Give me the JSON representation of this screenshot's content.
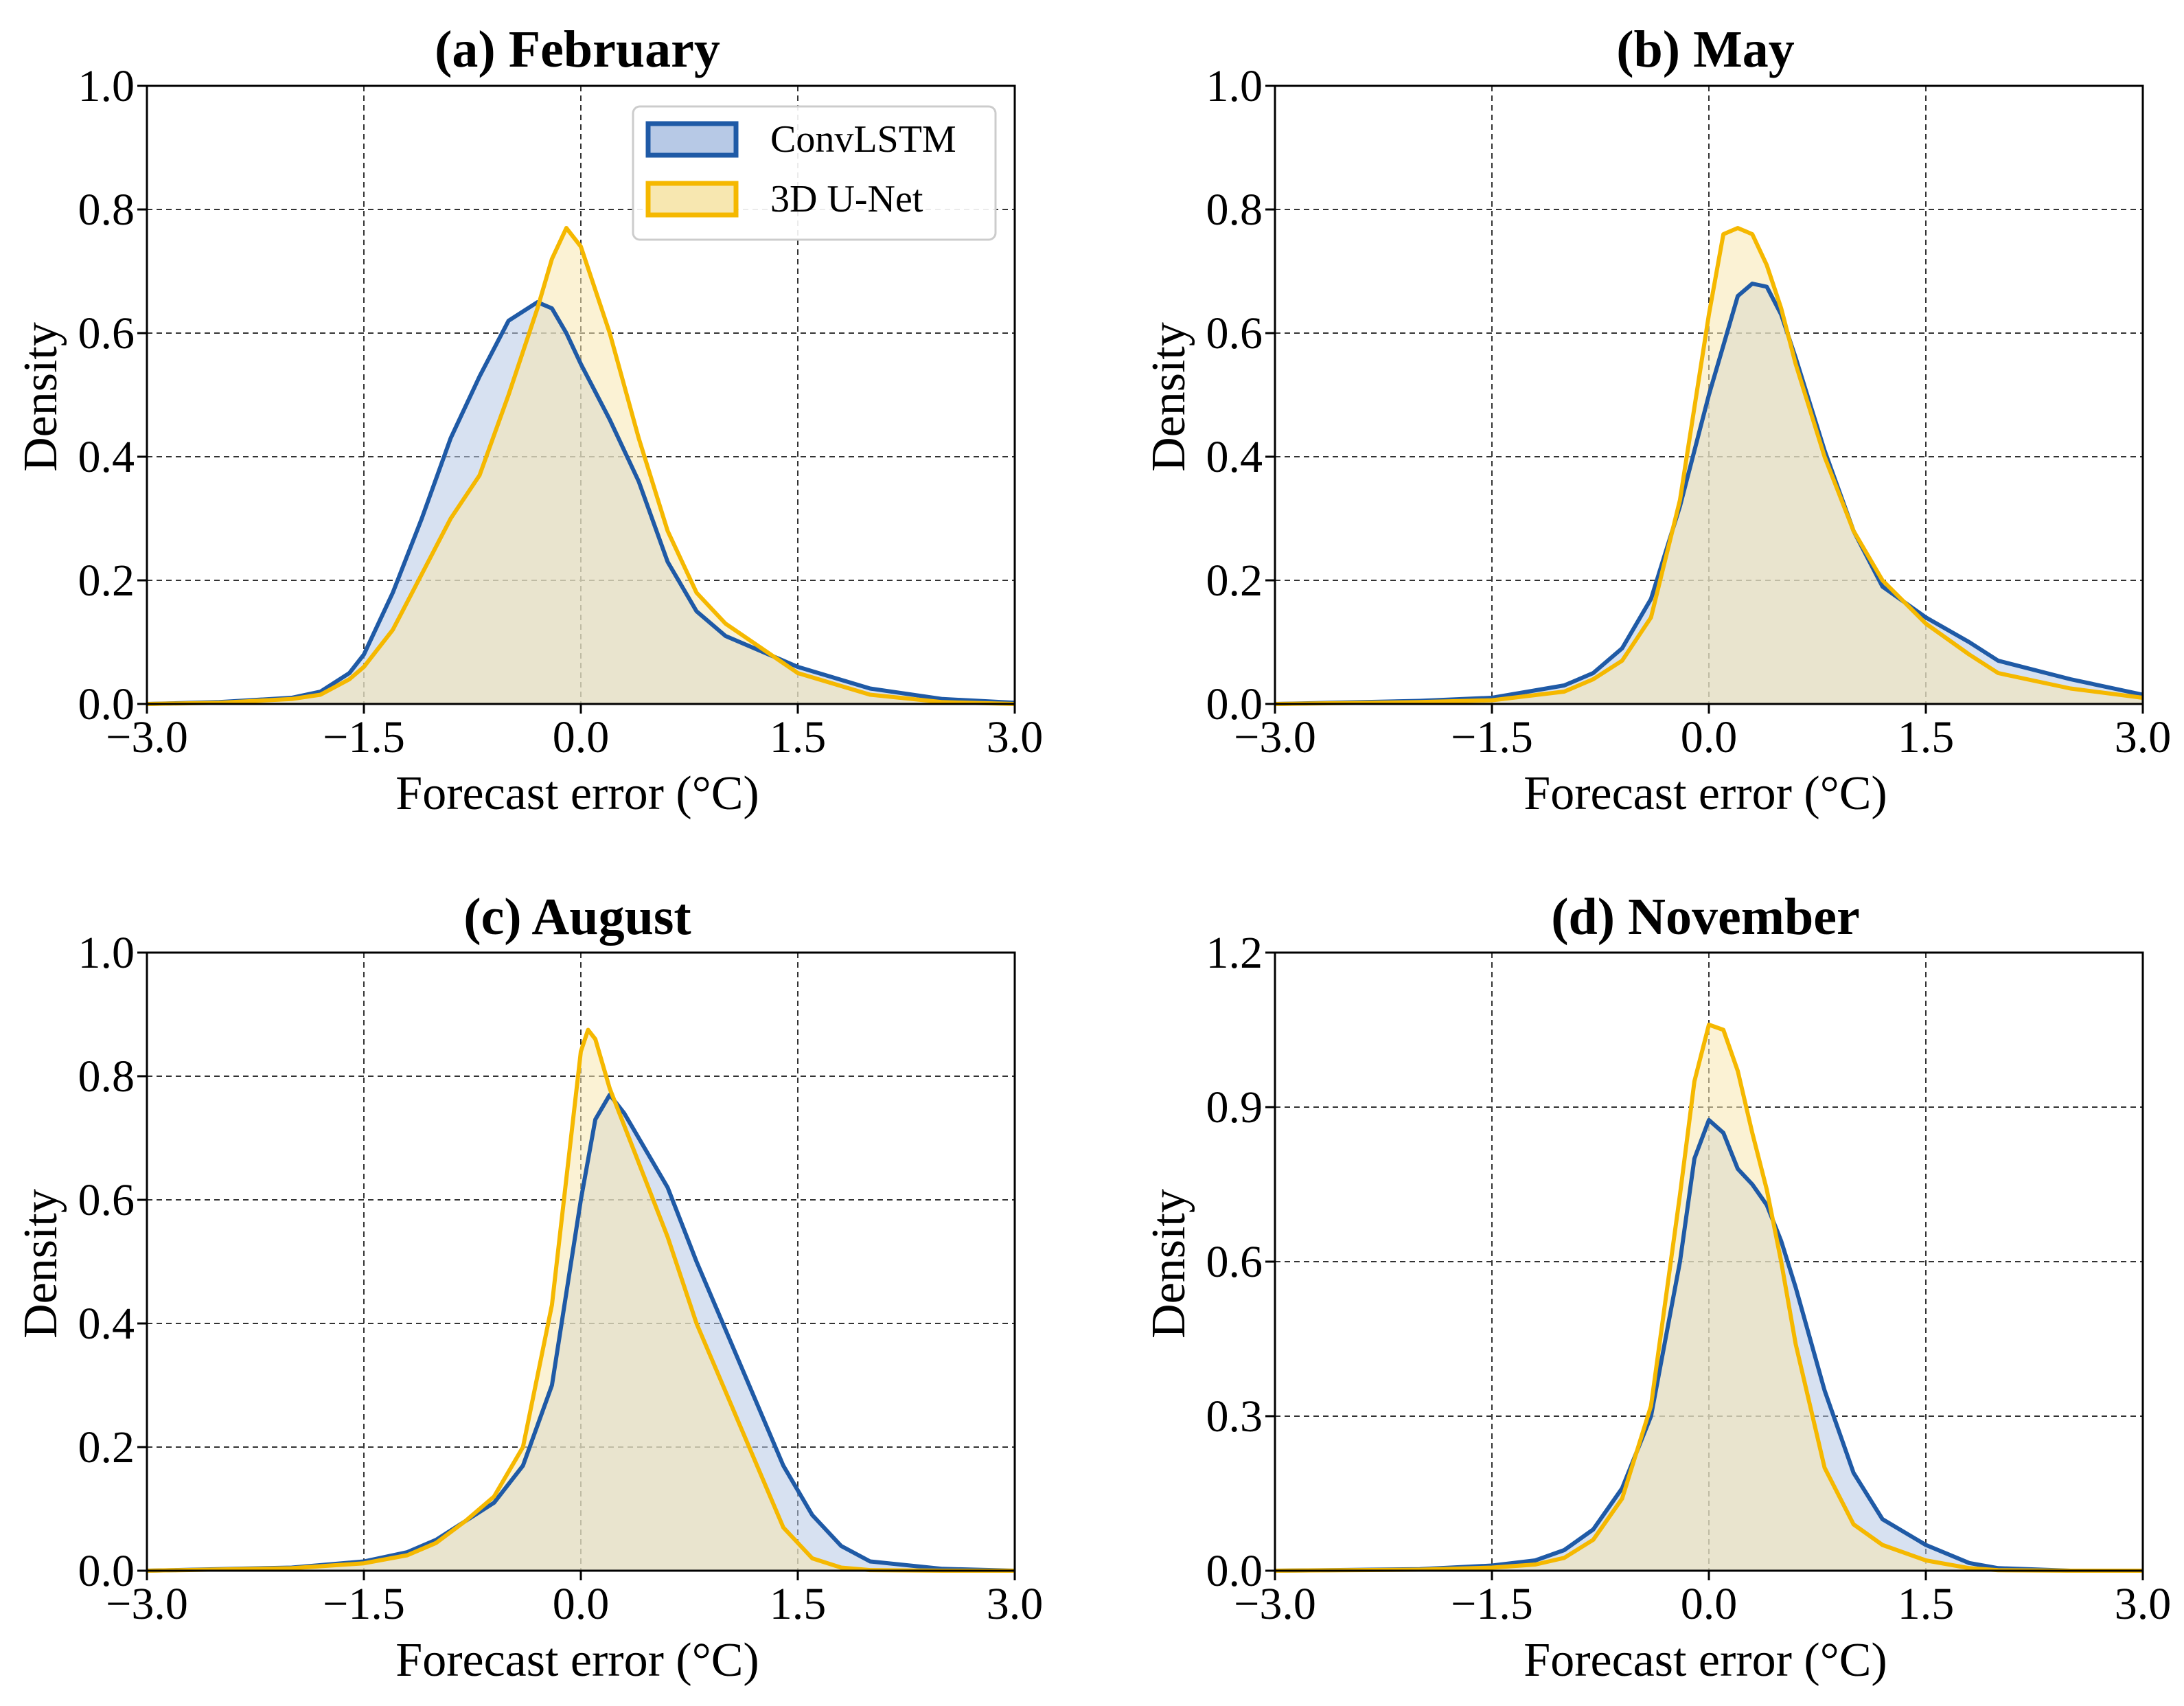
{
  "colors": {
    "convlstm_line": "#1f5aa6",
    "convlstm_fill": "#b7c9e6",
    "unet_line": "#f5b800",
    "unet_fill": "#f7e7b0",
    "grid": "#333333"
  },
  "legend": {
    "entries": [
      "ConvLSTM",
      "3D U-Net"
    ]
  },
  "chart_data": [
    {
      "type": "area",
      "title": "(a) February",
      "xlabel": "Forecast error (°C)",
      "ylabel": "Density",
      "xlim": [
        -3.0,
        3.0
      ],
      "ylim": [
        0.0,
        1.0
      ],
      "xticks": [
        -3.0,
        -1.5,
        0.0,
        1.5,
        3.0
      ],
      "xtick_labels": [
        "−3.0",
        "−1.5",
        "0.0",
        "1.5",
        "3.0"
      ],
      "yticks": [
        0.0,
        0.2,
        0.4,
        0.6,
        0.8,
        1.0
      ],
      "ytick_labels": [
        "0.0",
        "0.2",
        "0.4",
        "0.6",
        "0.8",
        "1.0"
      ],
      "grid": true,
      "legend_position": "top-right",
      "series": [
        {
          "name": "ConvLSTM",
          "x": [
            -3.0,
            -2.5,
            -2.0,
            -1.8,
            -1.6,
            -1.5,
            -1.3,
            -1.1,
            -0.9,
            -0.7,
            -0.5,
            -0.3,
            -0.2,
            -0.1,
            0.0,
            0.2,
            0.4,
            0.6,
            0.8,
            1.0,
            1.5,
            2.0,
            2.5,
            3.0
          ],
          "y": [
            0.0,
            0.003,
            0.01,
            0.02,
            0.05,
            0.08,
            0.18,
            0.3,
            0.43,
            0.53,
            0.62,
            0.65,
            0.64,
            0.6,
            0.55,
            0.46,
            0.36,
            0.23,
            0.15,
            0.11,
            0.06,
            0.025,
            0.008,
            0.002
          ]
        },
        {
          "name": "3D U-Net",
          "x": [
            -3.0,
            -2.5,
            -2.0,
            -1.8,
            -1.6,
            -1.5,
            -1.3,
            -1.1,
            -0.9,
            -0.7,
            -0.5,
            -0.3,
            -0.2,
            -0.1,
            0.0,
            0.2,
            0.4,
            0.6,
            0.8,
            1.0,
            1.5,
            2.0,
            2.5,
            3.0
          ],
          "y": [
            0.0,
            0.002,
            0.008,
            0.015,
            0.04,
            0.06,
            0.12,
            0.21,
            0.3,
            0.37,
            0.5,
            0.64,
            0.72,
            0.77,
            0.74,
            0.6,
            0.43,
            0.28,
            0.18,
            0.13,
            0.05,
            0.015,
            0.003,
            0.0
          ]
        }
      ]
    },
    {
      "type": "area",
      "title": "(b) May",
      "xlabel": "Forecast error (°C)",
      "ylabel": "Density",
      "xlim": [
        -3.0,
        3.0
      ],
      "ylim": [
        0.0,
        1.0
      ],
      "xticks": [
        -3.0,
        -1.5,
        0.0,
        1.5,
        3.0
      ],
      "xtick_labels": [
        "−3.0",
        "−1.5",
        "0.0",
        "1.5",
        "3.0"
      ],
      "yticks": [
        0.0,
        0.2,
        0.4,
        0.6,
        0.8,
        1.0
      ],
      "ytick_labels": [
        "0.0",
        "0.2",
        "0.4",
        "0.6",
        "0.8",
        "1.0"
      ],
      "grid": true,
      "series": [
        {
          "name": "ConvLSTM",
          "x": [
            -3.0,
            -2.0,
            -1.5,
            -1.0,
            -0.8,
            -0.6,
            -0.4,
            -0.2,
            0.0,
            0.1,
            0.2,
            0.3,
            0.4,
            0.5,
            0.6,
            0.8,
            1.0,
            1.2,
            1.5,
            1.8,
            2.0,
            2.5,
            3.0
          ],
          "y": [
            0.0,
            0.005,
            0.01,
            0.03,
            0.05,
            0.09,
            0.17,
            0.32,
            0.5,
            0.58,
            0.66,
            0.68,
            0.675,
            0.63,
            0.56,
            0.41,
            0.28,
            0.19,
            0.14,
            0.1,
            0.07,
            0.04,
            0.015
          ]
        },
        {
          "name": "3D U-Net",
          "x": [
            -3.0,
            -2.0,
            -1.5,
            -1.0,
            -0.8,
            -0.6,
            -0.4,
            -0.2,
            0.0,
            0.1,
            0.2,
            0.3,
            0.4,
            0.5,
            0.6,
            0.8,
            1.0,
            1.2,
            1.5,
            1.8,
            2.0,
            2.5,
            3.0
          ],
          "y": [
            0.0,
            0.003,
            0.006,
            0.02,
            0.04,
            0.07,
            0.14,
            0.33,
            0.63,
            0.76,
            0.77,
            0.76,
            0.71,
            0.64,
            0.55,
            0.4,
            0.28,
            0.2,
            0.13,
            0.08,
            0.05,
            0.025,
            0.01
          ]
        }
      ]
    },
    {
      "type": "area",
      "title": "(c) August",
      "xlabel": "Forecast error (°C)",
      "ylabel": "Density",
      "xlim": [
        -3.0,
        3.0
      ],
      "ylim": [
        0.0,
        1.0
      ],
      "xticks": [
        -3.0,
        -1.5,
        0.0,
        1.5,
        3.0
      ],
      "xtick_labels": [
        "−3.0",
        "−1.5",
        "0.0",
        "1.5",
        "3.0"
      ],
      "yticks": [
        0.0,
        0.2,
        0.4,
        0.6,
        0.8,
        1.0
      ],
      "ytick_labels": [
        "0.0",
        "0.2",
        "0.4",
        "0.6",
        "0.8",
        "1.0"
      ],
      "grid": true,
      "series": [
        {
          "name": "ConvLSTM",
          "x": [
            -3.0,
            -2.0,
            -1.5,
            -1.2,
            -1.0,
            -0.8,
            -0.6,
            -0.4,
            -0.2,
            0.0,
            0.1,
            0.2,
            0.3,
            0.4,
            0.6,
            0.8,
            1.0,
            1.2,
            1.4,
            1.6,
            1.8,
            2.0,
            2.5,
            3.0
          ],
          "y": [
            0.0,
            0.005,
            0.015,
            0.03,
            0.05,
            0.08,
            0.11,
            0.17,
            0.3,
            0.6,
            0.73,
            0.77,
            0.74,
            0.7,
            0.62,
            0.5,
            0.39,
            0.28,
            0.17,
            0.09,
            0.04,
            0.015,
            0.003,
            0.0
          ]
        },
        {
          "name": "3D U-Net",
          "x": [
            -3.0,
            -2.0,
            -1.5,
            -1.2,
            -1.0,
            -0.8,
            -0.6,
            -0.4,
            -0.2,
            0.0,
            0.05,
            0.1,
            0.2,
            0.3,
            0.4,
            0.6,
            0.8,
            1.0,
            1.2,
            1.4,
            1.6,
            1.8,
            2.0,
            2.5,
            3.0
          ],
          "y": [
            0.0,
            0.004,
            0.012,
            0.025,
            0.045,
            0.08,
            0.12,
            0.2,
            0.43,
            0.84,
            0.875,
            0.86,
            0.78,
            0.72,
            0.66,
            0.54,
            0.4,
            0.29,
            0.18,
            0.07,
            0.02,
            0.005,
            0.001,
            0.0,
            0.0
          ]
        }
      ]
    },
    {
      "type": "area",
      "title": "(d) November",
      "xlabel": "Forecast error (°C)",
      "ylabel": "Density",
      "xlim": [
        -3.0,
        3.0
      ],
      "ylim": [
        0.0,
        1.2
      ],
      "xticks": [
        -3.0,
        -1.5,
        0.0,
        1.5,
        3.0
      ],
      "xtick_labels": [
        "−3.0",
        "−1.5",
        "0.0",
        "1.5",
        "3.0"
      ],
      "yticks": [
        0.0,
        0.3,
        0.6,
        0.9,
        1.2
      ],
      "ytick_labels": [
        "0.0",
        "0.3",
        "0.6",
        "0.9",
        "1.2"
      ],
      "grid": true,
      "series": [
        {
          "name": "ConvLSTM",
          "x": [
            -3.0,
            -2.0,
            -1.5,
            -1.2,
            -1.0,
            -0.8,
            -0.6,
            -0.4,
            -0.2,
            -0.1,
            0.0,
            0.1,
            0.2,
            0.3,
            0.4,
            0.5,
            0.6,
            0.8,
            1.0,
            1.2,
            1.5,
            1.8,
            2.0,
            2.5,
            3.0
          ],
          "y": [
            0.0,
            0.003,
            0.01,
            0.02,
            0.04,
            0.08,
            0.16,
            0.3,
            0.6,
            0.8,
            0.875,
            0.85,
            0.78,
            0.75,
            0.71,
            0.64,
            0.55,
            0.35,
            0.19,
            0.1,
            0.05,
            0.015,
            0.005,
            0.0,
            0.0
          ]
        },
        {
          "name": "3D U-Net",
          "x": [
            -3.0,
            -2.0,
            -1.5,
            -1.2,
            -1.0,
            -0.8,
            -0.6,
            -0.4,
            -0.2,
            -0.1,
            0.0,
            0.1,
            0.2,
            0.3,
            0.4,
            0.5,
            0.6,
            0.8,
            1.0,
            1.2,
            1.5,
            1.8,
            2.0,
            2.5,
            3.0
          ],
          "y": [
            0.0,
            0.002,
            0.006,
            0.012,
            0.025,
            0.06,
            0.14,
            0.32,
            0.73,
            0.95,
            1.06,
            1.05,
            0.97,
            0.85,
            0.74,
            0.6,
            0.44,
            0.2,
            0.09,
            0.05,
            0.02,
            0.005,
            0.001,
            0.0,
            0.0
          ]
        }
      ]
    }
  ]
}
